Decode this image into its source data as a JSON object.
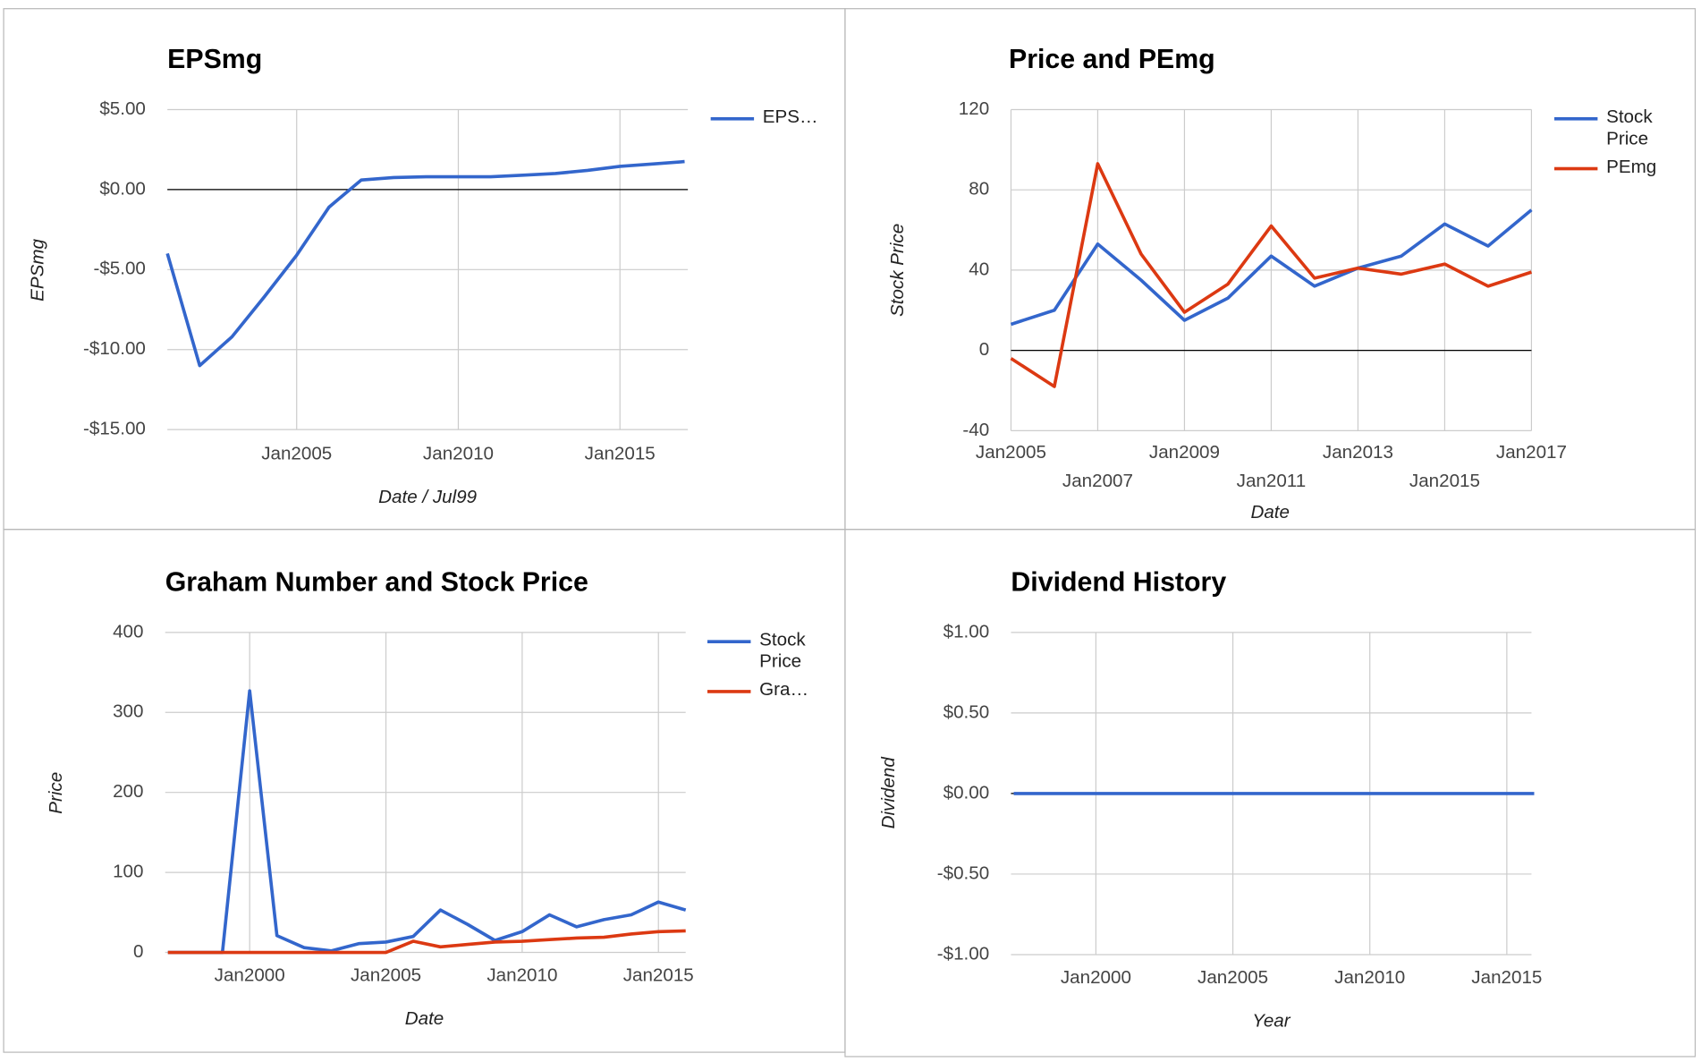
{
  "chart_data": [
    {
      "type": "line",
      "title": "EPSmg",
      "x_label": "Date / Jul99",
      "y_label": "EPSmg",
      "legend": "right",
      "x": [
        2001,
        2002,
        2003,
        2004,
        2005,
        2006,
        2007,
        2008,
        2009,
        2010,
        2011,
        2012,
        2013,
        2014,
        2015,
        2016,
        2017
      ],
      "series": [
        {
          "name": "EPS…",
          "color": "#3366cc",
          "values": [
            -4.0,
            -11.0,
            -9.2,
            -6.7,
            -4.1,
            -1.1,
            0.6,
            0.75,
            0.8,
            0.8,
            0.8,
            0.9,
            1.0,
            1.2,
            1.45,
            1.6,
            1.75
          ]
        }
      ],
      "xlim": [
        2001,
        2017.1
      ],
      "ylim": [
        -15,
        5
      ],
      "grid": true,
      "xticks": [
        {
          "value": 2005,
          "label": "Jan2005"
        },
        {
          "value": 2010,
          "label": "Jan2010"
        },
        {
          "value": 2015,
          "label": "Jan2015"
        }
      ],
      "yticks": [
        {
          "value": 5,
          "label": "$5.00"
        },
        {
          "value": 0,
          "label": "$0.00"
        },
        {
          "value": -5,
          "label": "-$5.00"
        },
        {
          "value": -10,
          "label": "-$10.00"
        },
        {
          "value": -15,
          "label": "-$15.00"
        }
      ]
    },
    {
      "type": "line",
      "title": "Price and PEmg",
      "x_label": "Date",
      "y_label": "Stock Price",
      "legend": "right",
      "x": [
        2005,
        2006,
        2007,
        2008,
        2009,
        2010,
        2011,
        2012,
        2013,
        2014,
        2015,
        2016,
        2017
      ],
      "series": [
        {
          "name": "Stock Price",
          "color": "#3366cc",
          "values": [
            13,
            20,
            53,
            35,
            15,
            26,
            47,
            32,
            41,
            47,
            63,
            52,
            70
          ]
        },
        {
          "name": "PEmg",
          "color": "#dc3912",
          "values": [
            -4,
            -18,
            93,
            48,
            19,
            33,
            62,
            36,
            41,
            38,
            43,
            32,
            39
          ]
        }
      ],
      "xlim": [
        2005,
        2017
      ],
      "ylim": [
        -40,
        120
      ],
      "grid": true,
      "xticks": [
        {
          "value": 2005,
          "label": "Jan2005"
        },
        {
          "value": 2007,
          "label": "Jan2007"
        },
        {
          "value": 2009,
          "label": "Jan2009"
        },
        {
          "value": 2011,
          "label": "Jan2011"
        },
        {
          "value": 2013,
          "label": "Jan2013"
        },
        {
          "value": 2015,
          "label": "Jan2015"
        },
        {
          "value": 2017,
          "label": "Jan2017"
        }
      ],
      "yticks": [
        120,
        80,
        40,
        0,
        -40
      ]
    },
    {
      "type": "line",
      "title": "Graham Number and Stock Price",
      "x_label": "Date",
      "y_label": "Price",
      "legend": "right",
      "x": [
        1997,
        1998,
        1999,
        2000,
        2001,
        2002,
        2003,
        2004,
        2005,
        2006,
        2007,
        2008,
        2009,
        2010,
        2011,
        2012,
        2013,
        2014,
        2015,
        2016
      ],
      "series": [
        {
          "name": "Stock Price",
          "color": "#3366cc",
          "values": [
            0,
            0,
            0,
            327,
            21,
            6,
            2,
            11,
            13,
            20,
            53,
            35,
            15,
            26,
            47,
            32,
            41,
            47,
            63,
            53
          ]
        },
        {
          "name": "Gra…",
          "color": "#dc3912",
          "values": [
            0,
            0,
            0,
            0,
            0,
            0,
            0,
            0,
            0,
            14,
            7,
            10,
            13,
            14,
            16,
            18,
            19,
            23,
            26,
            27
          ]
        }
      ],
      "xlim": [
        1996.9,
        2016
      ],
      "ylim": [
        0,
        400
      ],
      "grid": true,
      "xticks": [
        {
          "value": 2000,
          "label": "Jan2000"
        },
        {
          "value": 2005,
          "label": "Jan2005"
        },
        {
          "value": 2010,
          "label": "Jan2010"
        },
        {
          "value": 2015,
          "label": "Jan2015"
        }
      ],
      "yticks": [
        400,
        300,
        200,
        100,
        0
      ]
    },
    {
      "type": "line",
      "title": "Dividend History",
      "x_label": "Year",
      "y_label": "Dividend",
      "x": [
        1997,
        1998,
        1999,
        2000,
        2001,
        2002,
        2003,
        2004,
        2005,
        2006,
        2007,
        2008,
        2009,
        2010,
        2011,
        2012,
        2013,
        2014,
        2015,
        2016
      ],
      "series": [
        {
          "color": "#3366cc",
          "values": [
            0,
            0,
            0,
            0,
            0,
            0,
            0,
            0,
            0,
            0,
            0,
            0,
            0,
            0,
            0,
            0,
            0,
            0,
            0,
            0
          ]
        }
      ],
      "xlim": [
        1996.9,
        2015.9
      ],
      "ylim": [
        -1,
        1
      ],
      "grid": true,
      "xticks": [
        {
          "value": 2000,
          "label": "Jan2000"
        },
        {
          "value": 2005,
          "label": "Jan2005"
        },
        {
          "value": 2010,
          "label": "Jan2010"
        },
        {
          "value": 2015,
          "label": "Jan2015"
        }
      ],
      "yticks": [
        {
          "value": 1,
          "label": "$1.00"
        },
        {
          "value": 0.5,
          "label": "$0.50"
        },
        {
          "value": 0,
          "label": "$0.00"
        },
        {
          "value": -0.5,
          "label": "-$0.50"
        },
        {
          "value": -1,
          "label": "-$1.00"
        }
      ]
    }
  ]
}
